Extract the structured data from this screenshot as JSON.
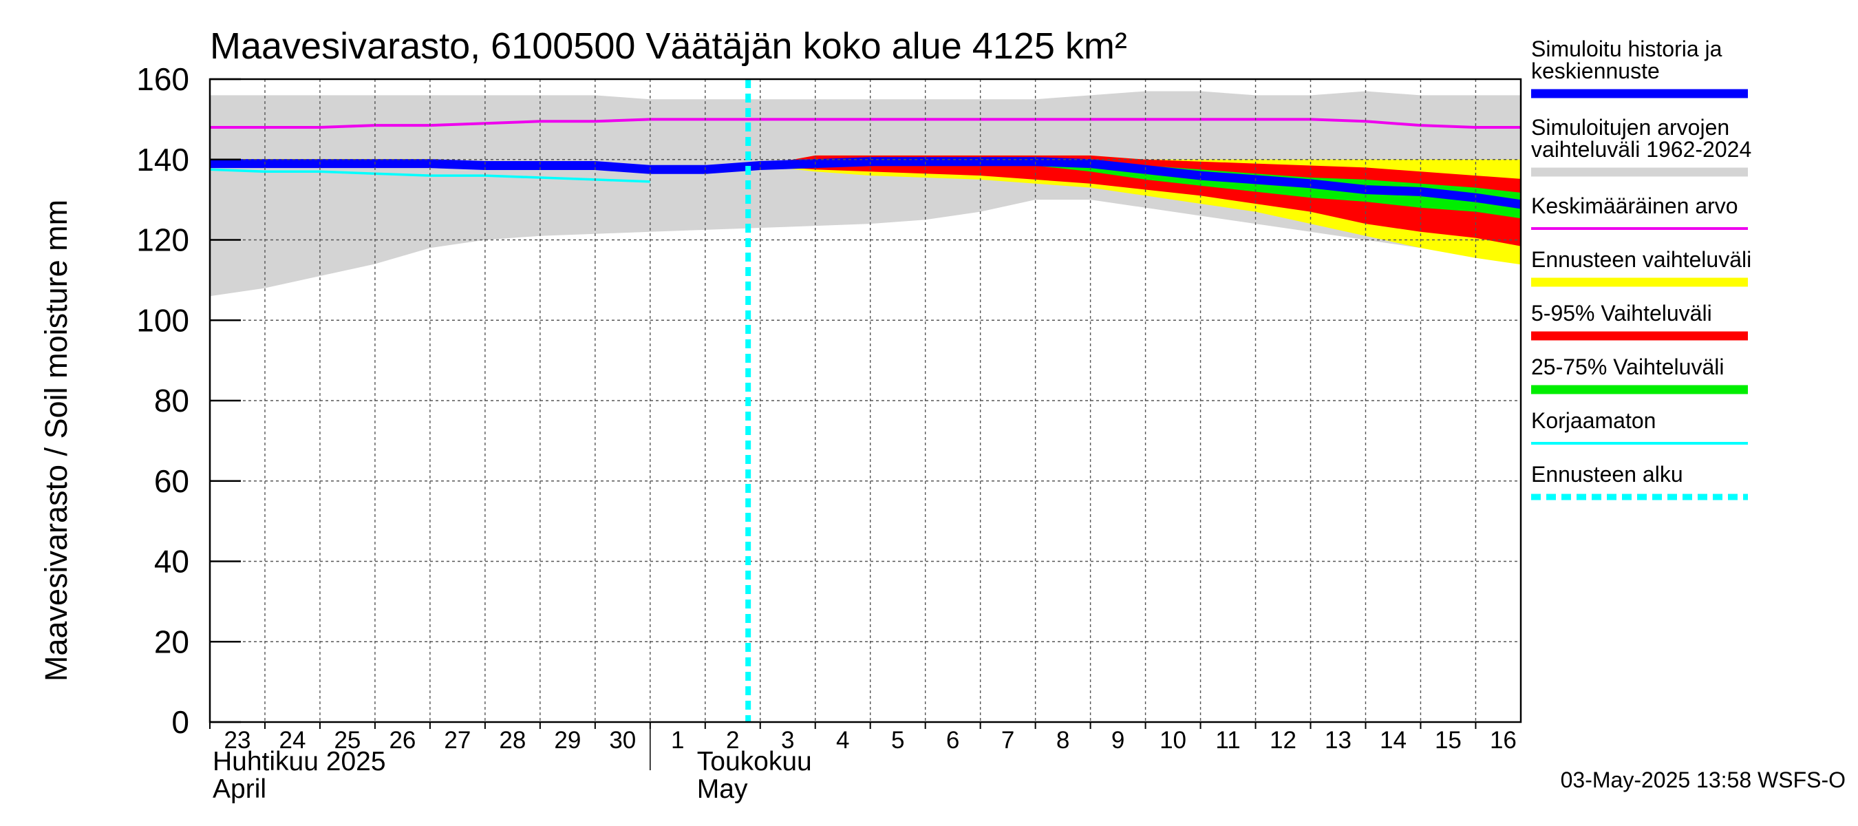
{
  "chart_data": {
    "type": "area",
    "title": "Maavesivarasto, 6100500 Väätäjän koko alue 4125 km²",
    "ylabel": "Maavesivarasto / Soil moisture   mm",
    "ylim": [
      0,
      160
    ],
    "yticks": [
      0,
      20,
      40,
      60,
      80,
      100,
      120,
      140,
      160
    ],
    "grid": true,
    "legend_position": "right",
    "xlim": [
      "2025-04-23",
      "2025-05-16"
    ],
    "x_tick_labels": [
      "23",
      "24",
      "25",
      "26",
      "27",
      "28",
      "29",
      "30",
      "1",
      "2",
      "3",
      "4",
      "5",
      "6",
      "7",
      "8",
      "9",
      "10",
      "11",
      "12",
      "13",
      "14",
      "15",
      "16"
    ],
    "months": [
      {
        "fi": "Huhtikuu  2025",
        "en": "April"
      },
      {
        "fi": "Toukokuu",
        "en": "May"
      }
    ],
    "forecast_start": "2025-05-03",
    "timestamp": "03-May-2025 13:58 WSFS-O",
    "colors": {
      "history": "#0000ff",
      "range_1962_2024": "#d4d4d4",
      "mean": "#ee00ee",
      "forecast_range": "#ffff00",
      "p5_95": "#ff0000",
      "p25_75": "#00ee00",
      "uncorrected": "#00ffff",
      "forecast_start": "#00ffff"
    },
    "legend": [
      {
        "key": "history",
        "label": "Simuloitu historia ja keskiennuste",
        "style": "thick"
      },
      {
        "key": "range_1962_2024",
        "label": "Simuloitujen arvojen vaihteluväli 1962-2024",
        "style": "thick"
      },
      {
        "key": "mean",
        "label": "Keskimääräinen arvo",
        "style": "thin"
      },
      {
        "key": "forecast_range",
        "label": "Ennusteen vaihteluväli",
        "style": "thick"
      },
      {
        "key": "p5_95",
        "label": "5-95% Vaihteluväli",
        "style": "thick"
      },
      {
        "key": "p25_75",
        "label": "25-75% Vaihteluväli",
        "style": "thick"
      },
      {
        "key": "uncorrected",
        "label": "Korjaamaton",
        "style": "thin"
      },
      {
        "key": "forecast_start",
        "label": "Ennusteen alku",
        "style": "dashed"
      }
    ],
    "series": [
      {
        "key": "range_1962_2024",
        "kind": "band",
        "x": [
          "2025-04-23",
          "2025-04-24",
          "2025-04-25",
          "2025-04-26",
          "2025-04-27",
          "2025-04-28",
          "2025-04-29",
          "2025-04-30",
          "2025-05-01",
          "2025-05-02",
          "2025-05-03",
          "2025-05-04",
          "2025-05-05",
          "2025-05-06",
          "2025-05-07",
          "2025-05-08",
          "2025-05-09",
          "2025-05-10",
          "2025-05-11",
          "2025-05-12",
          "2025-05-13",
          "2025-05-14",
          "2025-05-15",
          "2025-05-16",
          "2025-05-17"
        ],
        "lower": [
          106,
          108,
          111,
          114,
          118,
          120,
          121,
          121.5,
          122,
          122.5,
          123,
          123.5,
          124,
          125,
          127,
          130,
          130,
          128,
          126,
          124,
          122,
          120,
          118,
          116,
          115
        ],
        "upper": [
          156,
          156,
          156,
          156,
          156,
          156,
          156,
          156,
          155,
          155,
          155,
          155,
          155,
          155,
          155,
          155,
          156,
          157,
          157,
          156,
          156,
          157,
          156,
          156,
          156
        ]
      },
      {
        "key": "forecast_range",
        "kind": "band",
        "x": [
          "2025-05-03",
          "2025-05-04",
          "2025-05-05",
          "2025-05-06",
          "2025-05-07",
          "2025-05-08",
          "2025-05-09",
          "2025-05-10",
          "2025-05-11",
          "2025-05-12",
          "2025-05-13",
          "2025-05-14",
          "2025-05-15",
          "2025-05-16",
          "2025-05-17"
        ],
        "lower": [
          138.5,
          137,
          136,
          135.5,
          135,
          134,
          133,
          131,
          129,
          127,
          124,
          121,
          118,
          115.5,
          113.5
        ],
        "upper": [
          138.5,
          141,
          141,
          141,
          141,
          141,
          141,
          140,
          140,
          140,
          140,
          140,
          140,
          140,
          140
        ]
      },
      {
        "key": "p5_95",
        "kind": "band",
        "x": [
          "2025-05-03",
          "2025-05-04",
          "2025-05-05",
          "2025-05-06",
          "2025-05-07",
          "2025-05-08",
          "2025-05-09",
          "2025-05-10",
          "2025-05-11",
          "2025-05-12",
          "2025-05-13",
          "2025-05-14",
          "2025-05-15",
          "2025-05-16",
          "2025-05-17"
        ],
        "lower": [
          138.5,
          137.5,
          137,
          136.5,
          136,
          135,
          134,
          132.5,
          131,
          129,
          127,
          124,
          122,
          120.5,
          118
        ],
        "upper": [
          138.5,
          141,
          141,
          141,
          141,
          141,
          141,
          140,
          139.5,
          139,
          138.5,
          138,
          137,
          136,
          135
        ]
      },
      {
        "key": "p25_75",
        "kind": "band",
        "x": [
          "2025-05-03",
          "2025-05-04",
          "2025-05-05",
          "2025-05-06",
          "2025-05-07",
          "2025-05-08",
          "2025-05-09",
          "2025-05-10",
          "2025-05-11",
          "2025-05-12",
          "2025-05-13",
          "2025-05-14",
          "2025-05-15",
          "2025-05-16",
          "2025-05-17"
        ],
        "lower": [
          138.5,
          139,
          139,
          139,
          139,
          138.5,
          137,
          135,
          133.5,
          132,
          130.5,
          129.5,
          128,
          127,
          125
        ],
        "upper": [
          138.5,
          140,
          140,
          140,
          140,
          140,
          139.5,
          138.5,
          137.5,
          136.5,
          135.5,
          135,
          134,
          133,
          131.5
        ]
      },
      {
        "key": "mean",
        "kind": "line",
        "x": [
          "2025-04-23",
          "2025-04-24",
          "2025-04-25",
          "2025-04-26",
          "2025-04-27",
          "2025-04-28",
          "2025-04-29",
          "2025-04-30",
          "2025-05-01",
          "2025-05-02",
          "2025-05-03",
          "2025-05-04",
          "2025-05-05",
          "2025-05-06",
          "2025-05-07",
          "2025-05-08",
          "2025-05-09",
          "2025-05-10",
          "2025-05-11",
          "2025-05-12",
          "2025-05-13",
          "2025-05-14",
          "2025-05-15",
          "2025-05-16",
          "2025-05-17"
        ],
        "y": [
          148,
          148,
          148,
          148.5,
          148.5,
          149,
          149.5,
          149.5,
          150,
          150,
          150,
          150,
          150,
          150,
          150,
          150,
          150,
          150,
          150,
          150,
          150,
          149.5,
          148.5,
          148,
          148
        ]
      },
      {
        "key": "uncorrected",
        "kind": "line",
        "x": [
          "2025-04-23",
          "2025-04-24",
          "2025-04-25",
          "2025-04-26",
          "2025-04-27",
          "2025-04-28",
          "2025-04-29",
          "2025-04-30",
          "2025-05-01"
        ],
        "y": [
          137.5,
          137,
          137,
          136.5,
          136,
          136,
          135.5,
          135,
          134.5
        ]
      },
      {
        "key": "history",
        "kind": "line",
        "x": [
          "2025-04-23",
          "2025-04-24",
          "2025-04-25",
          "2025-04-26",
          "2025-04-27",
          "2025-04-28",
          "2025-04-29",
          "2025-04-30",
          "2025-05-01",
          "2025-05-02",
          "2025-05-03",
          "2025-05-04",
          "2025-05-05",
          "2025-05-06",
          "2025-05-07",
          "2025-05-08",
          "2025-05-09",
          "2025-05-10",
          "2025-05-11",
          "2025-05-12",
          "2025-05-13",
          "2025-05-14",
          "2025-05-15",
          "2025-05-16",
          "2025-05-17"
        ],
        "y": [
          139,
          139,
          139,
          139,
          139,
          138.5,
          138.5,
          138.5,
          137.5,
          137.5,
          138.5,
          139,
          139.5,
          139.5,
          139.5,
          139.5,
          139,
          137.5,
          136,
          135,
          134,
          132.5,
          132,
          130.5,
          128.5
        ]
      }
    ]
  }
}
